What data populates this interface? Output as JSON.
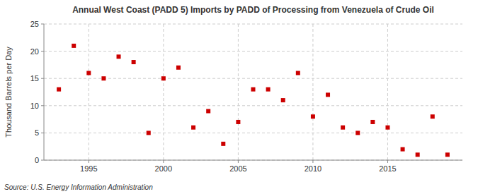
{
  "chart_data": {
    "type": "scatter",
    "title": "Annual West Coast (PADD 5) Imports by PADD of Processing from Venezuela of Crude Oil",
    "ylabel": "Thousand Barrels per Day",
    "source": "Source: U.S. Energy Information Administration",
    "x": [
      1993,
      1994,
      1995,
      1996,
      1997,
      1998,
      1999,
      2000,
      2001,
      2002,
      2003,
      2004,
      2005,
      2006,
      2007,
      2008,
      2009,
      2010,
      2011,
      2012,
      2013,
      2014,
      2015,
      2016,
      2017,
      2018,
      2019
    ],
    "values": [
      13,
      21,
      16,
      15,
      19,
      18,
      5,
      15,
      17,
      6,
      9,
      3,
      7,
      13,
      13,
      11,
      16,
      8,
      12,
      6,
      5,
      7,
      6,
      2,
      1,
      8,
      1
    ],
    "color": "#cc0000",
    "marker": "square",
    "xlim": [
      1992,
      2020
    ],
    "ylim": [
      0,
      25
    ],
    "xticks": [
      1995,
      2000,
      2005,
      2010,
      2015
    ],
    "yticks": [
      0,
      5,
      10,
      15,
      20,
      25
    ],
    "grid": true
  }
}
